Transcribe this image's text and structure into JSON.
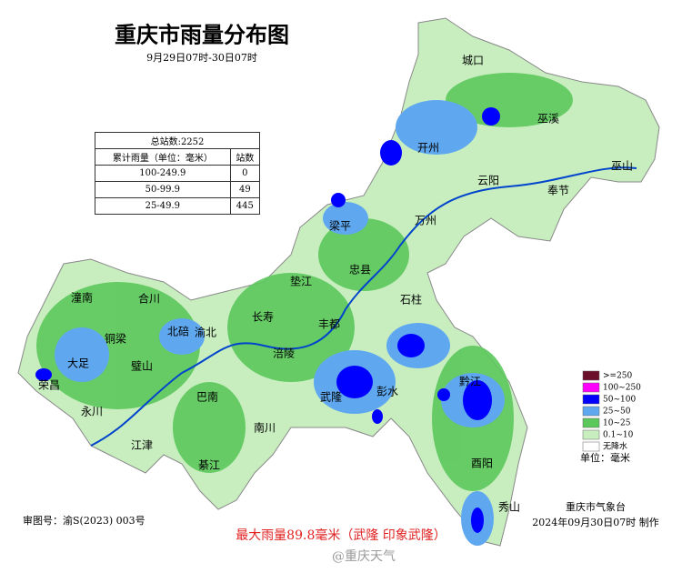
{
  "header": {
    "title": "重庆市雨量分布图",
    "subtitle": "9月29日07时-30日07时"
  },
  "table": {
    "caption": "总站数:2252",
    "columns": [
      "累计雨量（单位：毫米）",
      "站数"
    ],
    "rows": [
      [
        "100-249.9",
        0
      ],
      [
        "50-99.9",
        49
      ],
      [
        "25-49.9",
        445
      ]
    ]
  },
  "places": [
    "城口",
    "巫溪",
    "巫山",
    "开州",
    "云阳",
    "奉节",
    "万州",
    "梁平",
    "忠县",
    "垫江",
    "石柱",
    "丰都",
    "长寿",
    "潼南",
    "合川",
    "北碚",
    "渝北",
    "铜梁",
    "大足",
    "璧山",
    "荣昌",
    "永川",
    "涪陵",
    "武隆",
    "彭水",
    "黔江",
    "巴南",
    "南川",
    "江津",
    "綦江",
    "酉阳",
    "秀山"
  ],
  "legend": {
    "items": [
      {
        "label": ">=250",
        "color": "#6b0f2a"
      },
      {
        "label": "100~250",
        "color": "#ff00ff"
      },
      {
        "label": "50~100",
        "color": "#0000ff"
      },
      {
        "label": "25~50",
        "color": "#5fa8f0"
      },
      {
        "label": "10~25",
        "color": "#5cc85c"
      },
      {
        "label": "0.1~10",
        "color": "#c8eec0"
      },
      {
        "label": "无降水",
        "color": "#ffffff"
      }
    ],
    "unit": "单位：毫米"
  },
  "footer": {
    "approval": "审图号：渝S(2023) 003号",
    "max_rain": "最大雨量89.8毫米（武隆 印象武隆）",
    "agency": "重庆市气象台",
    "made": "2024年09月30日07时 制作",
    "watermark": "@重庆天气"
  }
}
